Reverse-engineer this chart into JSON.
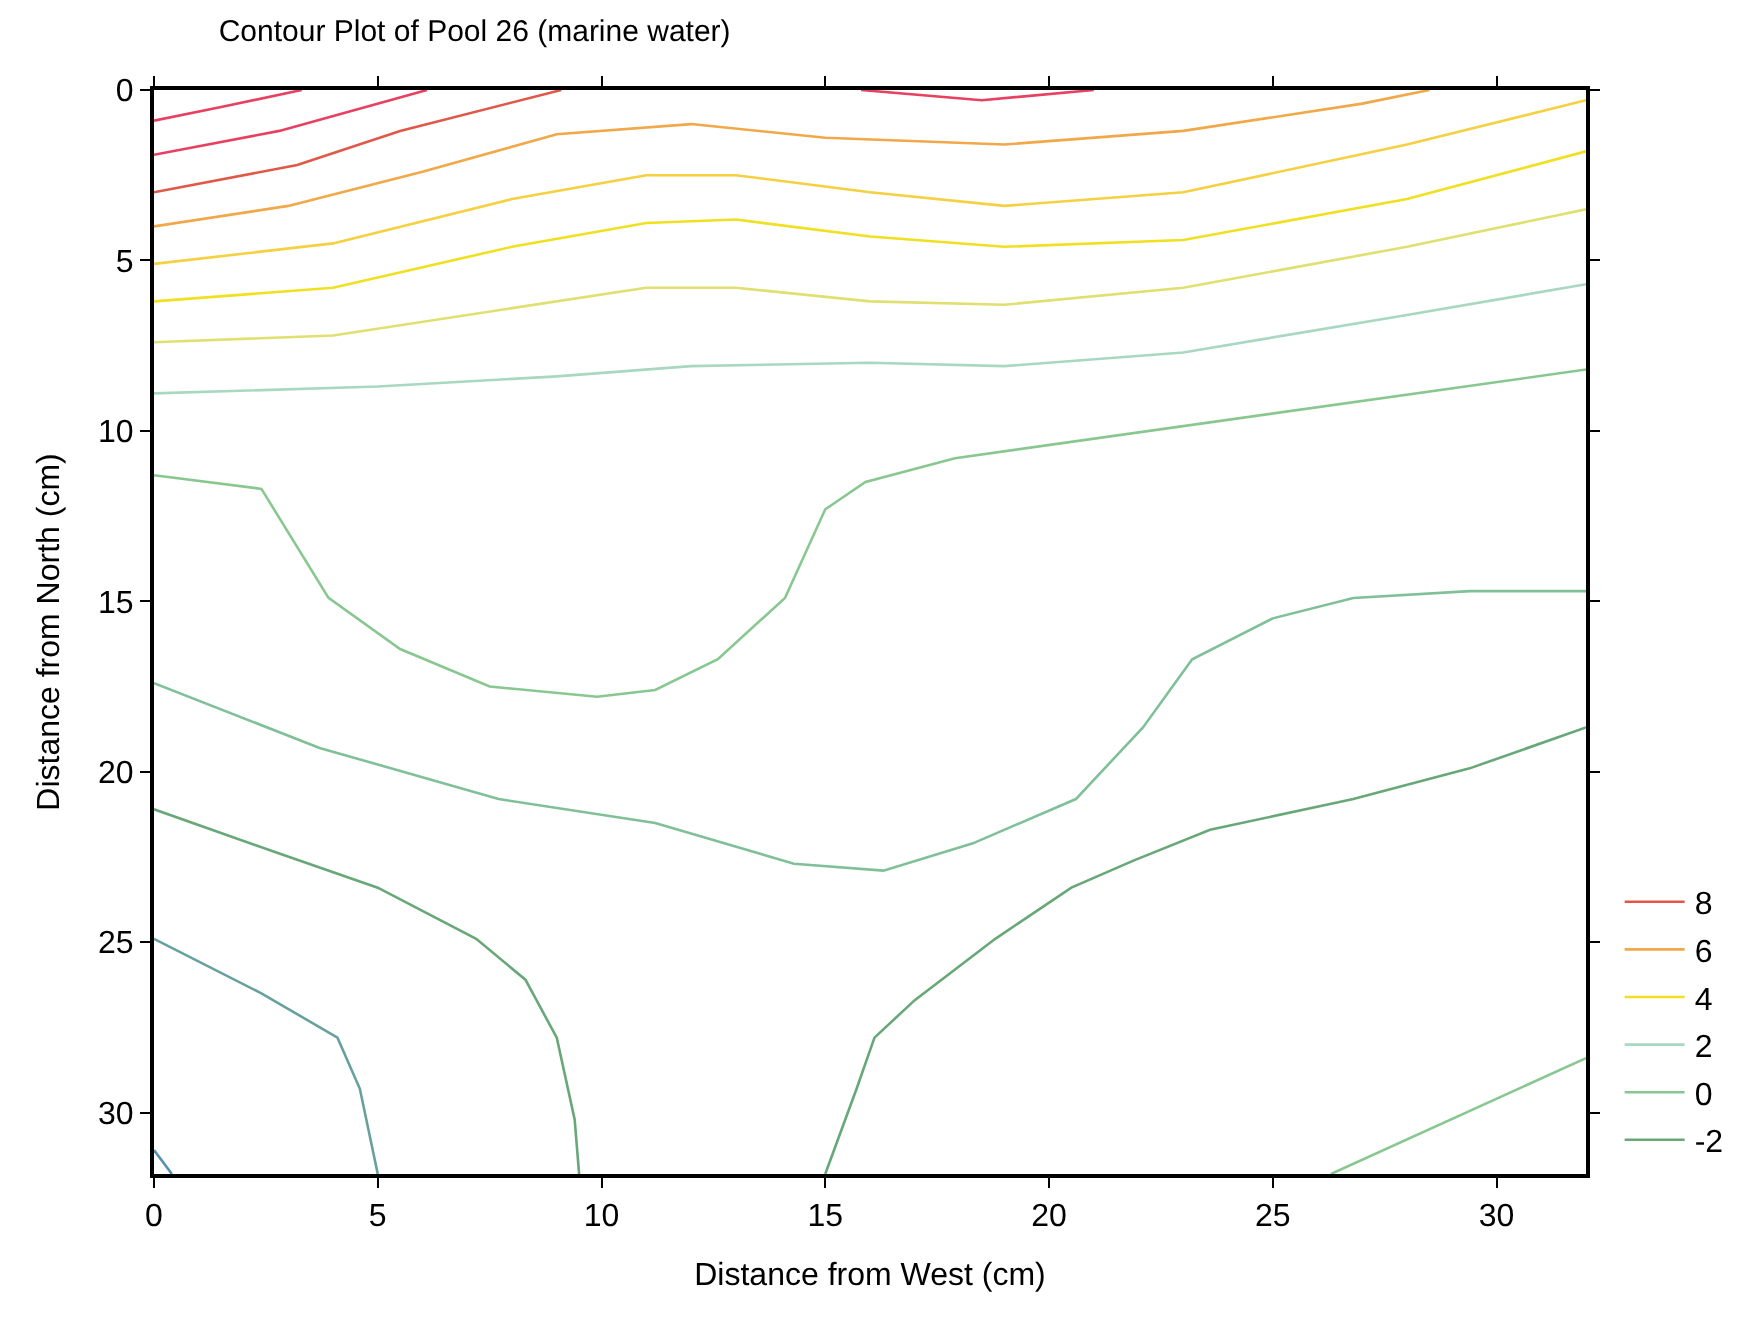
{
  "chart_data": {
    "type": "line",
    "title": "Contour Plot of Pool 26 (marine water)",
    "xlabel": "Distance from West (cm)",
    "ylabel": "Distance from North (cm)",
    "xlim": [
      0,
      32
    ],
    "ylim": [
      31.8,
      0
    ],
    "xticks": [
      0,
      5,
      10,
      15,
      20,
      25,
      30
    ],
    "yticks": [
      0,
      5,
      10,
      15,
      20,
      25,
      30
    ],
    "legend": "bottom right",
    "marker": "none",
    "line_style": "solid",
    "series": [
      {
        "color": "#e84060",
        "x": [
          15.8,
          18.5,
          21
        ],
        "values": [
          0,
          0.3,
          0
        ]
      },
      {
        "color": "#e84060",
        "x": [
          0,
          1.5,
          3.3
        ],
        "values": [
          0.9,
          0.5,
          0
        ]
      },
      {
        "color": "#e84060",
        "x": [
          0,
          2.8,
          6.1
        ],
        "values": [
          1.9,
          1.2,
          0
        ]
      },
      {
        "name": "8",
        "color": "#e05848",
        "x": [
          0,
          3.2,
          5.5,
          9.1
        ],
        "values": [
          3.0,
          2.2,
          1.2,
          0
        ]
      },
      {
        "name": "6",
        "color": "#f0a848",
        "x": [
          0,
          3,
          6,
          9,
          12,
          15,
          19,
          23,
          27,
          28.5
        ],
        "values": [
          4.0,
          3.4,
          2.4,
          1.3,
          1.0,
          1.4,
          1.6,
          1.2,
          0.4,
          0
        ]
      },
      {
        "color": "#f5d040",
        "x": [
          0,
          4,
          8,
          11,
          13,
          16,
          19,
          23,
          28,
          32
        ],
        "values": [
          5.1,
          4.5,
          3.2,
          2.5,
          2.5,
          3.0,
          3.4,
          3.0,
          1.6,
          0.3
        ]
      },
      {
        "name": "4",
        "color": "#f0e020",
        "x": [
          0,
          4,
          8,
          11,
          13,
          16,
          19,
          23,
          28,
          32
        ],
        "values": [
          6.2,
          5.8,
          4.6,
          3.9,
          3.8,
          4.3,
          4.6,
          4.4,
          3.2,
          1.8
        ]
      },
      {
        "color": "#e0e070",
        "x": [
          0,
          4,
          8,
          11,
          13,
          16,
          19,
          23,
          28,
          32
        ],
        "values": [
          7.4,
          7.2,
          6.4,
          5.8,
          5.8,
          6.2,
          6.3,
          5.8,
          4.6,
          3.5
        ]
      },
      {
        "name": "2",
        "color": "#a8d8c0",
        "x": [
          0,
          5,
          9,
          12,
          16,
          19,
          23,
          28,
          32
        ],
        "values": [
          8.9,
          8.7,
          8.4,
          8.1,
          8.0,
          8.1,
          7.7,
          6.6,
          5.7
        ]
      },
      {
        "name": "0",
        "color": "#88c890",
        "x": [
          0,
          2.4,
          3.9,
          5.5,
          7.5,
          9.9,
          11.2,
          12.6,
          14.1,
          15.0,
          15.9,
          17.9,
          32
        ],
        "values": [
          11.3,
          11.7,
          14.9,
          16.4,
          17.5,
          17.8,
          17.6,
          16.7,
          14.9,
          12.3,
          11.5,
          10.8,
          8.2
        ]
      },
      {
        "color": "#80c098",
        "x": [
          0,
          3.7,
          7.7,
          11.2,
          14.3,
          16.3,
          18.3,
          20.6,
          22.1,
          23.2,
          25,
          26.8,
          29.4,
          32
        ],
        "values": [
          17.4,
          19.3,
          20.8,
          21.5,
          22.7,
          22.9,
          22.1,
          20.8,
          18.7,
          16.7,
          15.5,
          14.9,
          14.7,
          14.7
        ]
      },
      {
        "name": "-2",
        "color": "#68a878",
        "x": [
          0,
          2.8,
          5.0,
          7.2,
          8.3,
          9.0,
          9.4,
          9.5
        ],
        "values": [
          21.1,
          22.4,
          23.4,
          24.9,
          26.1,
          27.8,
          30.2,
          31.8
        ]
      },
      {
        "color": "#68a878",
        "x": [
          15.0,
          15.7,
          16.1,
          17.0,
          18.8,
          20.5,
          21.9,
          23.6,
          26.8,
          29.4,
          32
        ],
        "values": [
          31.8,
          29.3,
          27.8,
          26.7,
          24.9,
          23.4,
          22.6,
          21.7,
          20.8,
          19.9,
          18.7
        ]
      },
      {
        "color": "#68a0a0",
        "x": [
          0,
          2.4,
          4.1,
          4.6,
          5.0
        ],
        "values": [
          24.9,
          26.5,
          27.8,
          29.3,
          31.8
        ]
      },
      {
        "color": "#5890b0",
        "x": [
          0,
          0.4
        ],
        "values": [
          31.1,
          31.8
        ]
      },
      {
        "color": "#88c890",
        "x": [
          26.3,
          32
        ],
        "values": [
          31.8,
          28.4
        ]
      }
    ]
  }
}
